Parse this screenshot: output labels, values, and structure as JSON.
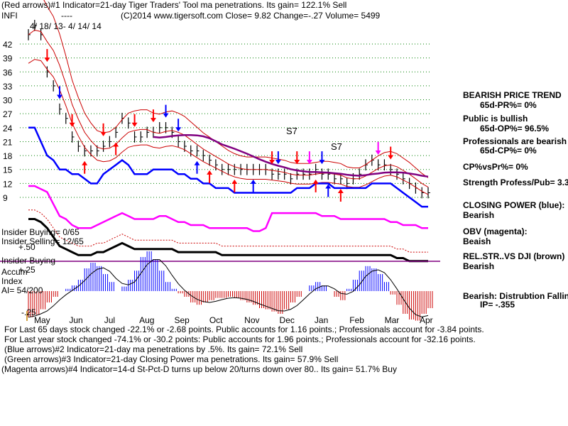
{
  "header": {
    "line1": "(Red arrows)#1 Indicator=21-day Tiger Traders' Tool ma penetrations. Its gain= 122.1% Sell",
    "ticker": "INFI",
    "dashes": "----",
    "line2": "(C)2014 www.tigersoft.com     Close=  9.82  Change=-.27 Volume= 5499",
    "date_range": "4/ 18/ 13-  4/ 14/ 14"
  },
  "chart_data": {
    "type": "line",
    "price_ticks": [
      "42",
      "39",
      "36",
      "33",
      "30",
      "27",
      "24",
      "21",
      "18",
      "15",
      "12",
      "9"
    ],
    "price_ylim": [
      9,
      42
    ],
    "months": [
      "May",
      "Jun",
      "Jul",
      "Aug",
      "Sep",
      "Oct",
      "Nov",
      "Dec",
      "Jan",
      "Feb",
      "Mar",
      "Apr"
    ],
    "series": [
      {
        "name": "Price",
        "values": [
          44,
          46,
          44,
          36,
          33,
          28,
          26,
          22,
          20,
          19,
          19,
          19,
          20,
          21,
          23,
          26,
          25,
          22,
          22,
          23,
          23,
          24,
          24,
          23,
          21,
          20,
          19,
          19,
          18,
          17,
          16,
          15,
          15,
          15,
          15,
          15,
          15,
          15,
          15,
          14,
          14,
          14,
          13,
          14,
          14,
          14,
          15,
          14,
          14,
          13,
          13,
          12,
          13,
          14,
          16,
          17,
          16,
          16,
          15,
          14,
          13,
          12,
          11,
          10,
          10
        ]
      },
      {
        "name": "Closing Power (blue)",
        "values": [
          24,
          24,
          21,
          18,
          17,
          15,
          15,
          14,
          14,
          13,
          12,
          12,
          14,
          15,
          16,
          17,
          16,
          14,
          14,
          14,
          15,
          15,
          15,
          15,
          14,
          14,
          13,
          13,
          12,
          12,
          11,
          11,
          11,
          10,
          10,
          10,
          10,
          10,
          10,
          10,
          10,
          10,
          10,
          11,
          11,
          11,
          12,
          12,
          12,
          11,
          11,
          11,
          11,
          11,
          11,
          12,
          12,
          12,
          12,
          11,
          10,
          9,
          8,
          7,
          7
        ]
      },
      {
        "name": "OBV (magenta)",
        "values": [
          10,
          10,
          9,
          8,
          4,
          0,
          -1,
          -3,
          -4,
          -4,
          -4,
          -3,
          -2,
          -1,
          0,
          1,
          0,
          -1,
          -1,
          -1,
          -1,
          0,
          0,
          -1,
          -2,
          -2,
          -3,
          -3,
          -3,
          -4,
          -4,
          -4,
          -4,
          -4,
          -4,
          -4,
          -5,
          -5,
          -4,
          1,
          1,
          1,
          1,
          1,
          1,
          1,
          1,
          0,
          0,
          0,
          -1,
          -1,
          -1,
          -1,
          -1,
          -1,
          -1,
          -1,
          -2,
          -2,
          -3,
          -3,
          -3,
          -4,
          -4
        ]
      },
      {
        "name": "REL.STR. vs DJI (brown)",
        "values": [
          -1,
          -1,
          -2,
          -4,
          -7,
          -10,
          -11,
          -12,
          -13,
          -13,
          -13,
          -12,
          -12,
          -11,
          -10,
          -9,
          -10,
          -11,
          -11,
          -11,
          -11,
          -11,
          -11,
          -11,
          -12,
          -12,
          -12,
          -12,
          -12,
          -12,
          -12,
          -13,
          -13,
          -13,
          -13,
          -13,
          -13,
          -13,
          -13,
          -13,
          -13,
          -13,
          -13,
          -13,
          -13,
          -13,
          -13,
          -13,
          -13,
          -13,
          -13,
          -13,
          -13,
          -13,
          -13,
          -13,
          -13,
          -13,
          -13,
          -14,
          -14,
          -15,
          -15,
          -15,
          -15
        ]
      }
    ],
    "accum_ticks": [
      "+.50",
      "+.25",
      "-.25"
    ],
    "accum_values": [
      -0.23,
      -0.21,
      -0.16,
      -0.1,
      -0.05,
      0.0,
      0.02,
      0.05,
      0.1,
      0.2,
      0.25,
      0.22,
      0.15,
      0.08,
      0.0,
      0.04,
      0.1,
      0.18,
      0.3,
      0.35,
      0.28,
      0.18,
      0.08,
      0.02,
      -0.02,
      -0.05,
      -0.1,
      -0.12,
      -0.1,
      -0.08,
      -0.06,
      -0.06,
      -0.05,
      -0.06,
      -0.08,
      -0.1,
      -0.12,
      -0.15,
      -0.16,
      -0.18,
      -0.2,
      -0.16,
      -0.1,
      -0.05,
      0.0,
      0.05,
      0.08,
      0.05,
      0.0,
      -0.05,
      -0.08,
      0.02,
      0.1,
      0.18,
      0.22,
      0.2,
      0.15,
      0.08,
      -0.03,
      -0.12,
      -0.2,
      -0.25,
      -0.26,
      -0.2,
      -0.15
    ],
    "annotations": [
      "S7",
      "S7"
    ]
  },
  "panel": {
    "trend_title": "BEARISH PRICE TREND",
    "pr": "65d-PR%= 0%",
    "public": "Public is bullish",
    "op": "65d-OP%= 96.5%",
    "pros": "Professionals are bearish",
    "cp": "65d-CP%= 0%",
    "cpvspr": "CP%vsPr%=  0%",
    "strength": "Strength Profess/Pub= 3.3",
    "closing_power_label": "CLOSING POWER (blue):",
    "closing_power_value": "Bearish",
    "obv_label": "OBV (magenta):",
    "obv_value": "Beaish",
    "relstr_label": "REL.STR..VS DJI (brown)",
    "relstr_value": "Bearish",
    "dist_label": "Bearish: Distrubtion Falling",
    "ip": "IP= -.355"
  },
  "insider": {
    "buying": "Insider Buying= 0/65",
    "selling": "Insider Selling= 12/65",
    "buying2": "Insider Buying",
    "accum": "Accum",
    "index": "Index",
    "ai": "AI= 54/200"
  },
  "footer": {
    "line1": "For Last 65 days stock changed -22.1% or -2.68 points.  Public accounts for  1.16 points.;  Professionals account for -3.84 points.",
    "line2": "For Last year stock changed -74.1% or -30.2 points:  Public accounts for 1.96 points.;  Professionals account for -32.16 points.",
    "line3": "(Blue arrows)#2 Indicator=21-day ma penetrations by .5%. Its gain= 72.1% Sell",
    "line4": "(Green arrows)#3 Indicator=21-day Closing Power ma penetrations. Its gain= 57.9% Sell",
    "line5": "(Magenta arrows)#4 Indicator=14-d St-Pct-D turns up below 20/turns down over 80.. Its gain= 51.7% Buy"
  },
  "colors": {
    "price": "#000000",
    "closing_power": "#0000ff",
    "obv": "#ff00ff",
    "relstr": "#000000",
    "red_arrow": "#ff0000",
    "blue_arrow": "#0000ff",
    "magenta_arrow": "#ff00ff",
    "ma_red": "#cc0000",
    "ma_purple": "#800080",
    "grid": "#008000"
  }
}
